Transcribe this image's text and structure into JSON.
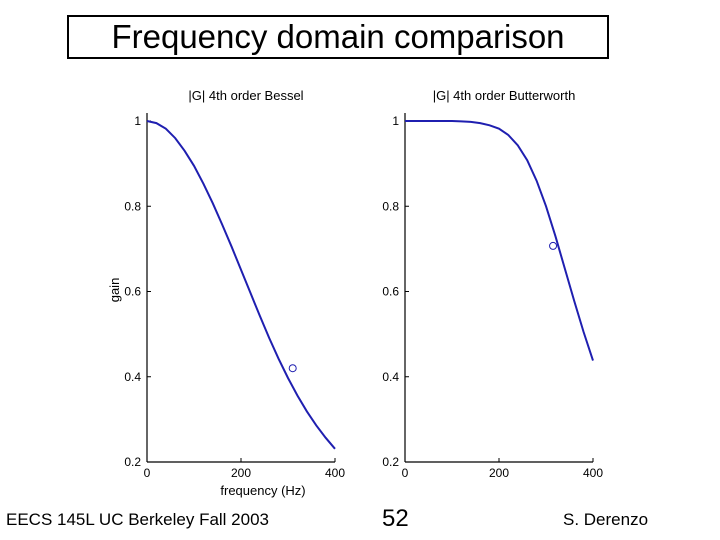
{
  "slide": {
    "title": "Frequency domain comparison",
    "footer_left": "EECS 145L UC Berkeley Fall 2003",
    "page_number": "52",
    "footer_right": "S. Derenzo"
  },
  "colors": {
    "curve": "#1f1fb0",
    "axis": "#000000",
    "text": "#000000"
  },
  "chart_data": [
    {
      "type": "line",
      "title": "|G| 4th order Bessel",
      "xlabel": "frequency (Hz)",
      "ylabel": "gain",
      "xlim": [
        0,
        400
      ],
      "ylim": [
        0.2,
        1
      ],
      "xticks": [
        0,
        200,
        400
      ],
      "yticks": [
        0.2,
        0.4,
        0.6,
        0.8,
        1
      ],
      "grid": false,
      "series": [
        {
          "x": [
            0,
            20,
            40,
            60,
            80,
            100,
            120,
            140,
            160,
            180,
            200,
            220,
            240,
            260,
            280,
            300,
            320,
            340,
            360,
            380,
            400
          ],
          "values": [
            1.0,
            0.995,
            0.982,
            0.96,
            0.93,
            0.895,
            0.853,
            0.807,
            0.757,
            0.705,
            0.651,
            0.597,
            0.543,
            0.491,
            0.442,
            0.397,
            0.356,
            0.319,
            0.286,
            0.257,
            0.231
          ]
        }
      ],
      "markers": [
        {
          "x": 310,
          "y": 0.42
        }
      ]
    },
    {
      "type": "line",
      "title": "|G| 4th order Butterworth",
      "xlabel": "",
      "ylabel": "",
      "xlim": [
        0,
        400
      ],
      "ylim": [
        0.2,
        1
      ],
      "xticks": [
        0,
        200,
        400
      ],
      "yticks": [
        0.2,
        0.4,
        0.6,
        0.8,
        1
      ],
      "grid": false,
      "series": [
        {
          "x": [
            0,
            20,
            40,
            60,
            80,
            100,
            120,
            140,
            160,
            180,
            200,
            220,
            240,
            260,
            280,
            300,
            320,
            340,
            360,
            380,
            400
          ],
          "values": [
            1.0,
            1.0,
            1.0,
            1.0,
            1.0,
            1.0,
            0.999,
            0.998,
            0.995,
            0.99,
            0.982,
            0.967,
            0.943,
            0.908,
            0.86,
            0.8,
            0.73,
            0.654,
            0.578,
            0.505,
            0.438
          ]
        }
      ],
      "markers": [
        {
          "x": 315,
          "y": 0.707
        }
      ]
    }
  ]
}
